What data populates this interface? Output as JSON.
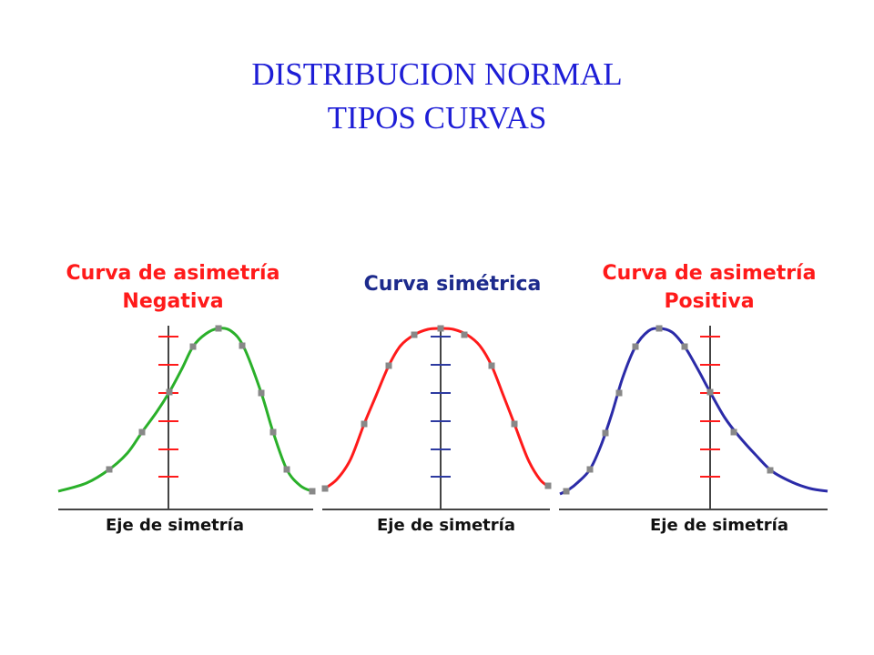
{
  "title": {
    "line1": "DISTRIBUCION NORMAL",
    "line2": "TIPOS CURVAS"
  },
  "panels": [
    {
      "kind": "negative",
      "caption_lines": [
        "Curva de asimetría",
        "Negativa"
      ],
      "caption_color": "#ff1a1a",
      "curve_color": "#2ab02a",
      "tick_color": "#ff1a1a",
      "axis_label": "Eje de simetría"
    },
    {
      "kind": "symmetric",
      "caption_lines": [
        "Curva simétrica"
      ],
      "caption_color": "#1c2a8c",
      "curve_color": "#ff1a1a",
      "tick_color": "#2d3aa0",
      "axis_label": "Eje de simetría"
    },
    {
      "kind": "positive",
      "caption_lines": [
        "Curva de asimetría",
        "Positiva"
      ],
      "caption_color": "#ff1a1a",
      "curve_color": "#2b2ba8",
      "tick_color": "#ff1a1a",
      "axis_label": "Eje de simetría"
    }
  ],
  "marker_color": "#888888"
}
